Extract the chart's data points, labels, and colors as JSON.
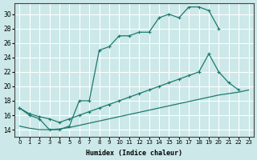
{
  "xlabel": "Humidex (Indice chaleur)",
  "xlim": [
    -0.5,
    23.5
  ],
  "ylim": [
    13,
    31.5
  ],
  "yticks": [
    14,
    16,
    18,
    20,
    22,
    24,
    26,
    28,
    30
  ],
  "xticks": [
    0,
    1,
    2,
    3,
    4,
    5,
    6,
    7,
    8,
    9,
    10,
    11,
    12,
    13,
    14,
    15,
    16,
    17,
    18,
    19,
    20,
    21,
    22,
    23
  ],
  "bg_color": "#cce8e8",
  "grid_color": "#ffffff",
  "line_color": "#1a7a6e",
  "curve1_x": [
    0,
    1,
    2,
    3,
    4,
    5,
    6,
    7,
    8,
    9,
    10,
    11,
    12,
    13,
    14,
    15,
    16,
    17,
    18,
    19,
    20
  ],
  "curve1_y": [
    17,
    16,
    15.5,
    14,
    14,
    14.5,
    18,
    18,
    25,
    25.5,
    27,
    27,
    27.5,
    27.5,
    29.5,
    30,
    29.5,
    31,
    31,
    30.5,
    28
  ],
  "curve2_x": [
    0,
    1,
    2,
    3,
    4,
    5,
    6,
    7,
    8,
    9,
    10,
    11,
    12,
    13,
    14,
    15,
    16,
    17,
    18,
    19,
    20,
    21,
    22
  ],
  "curve2_y": [
    17,
    16.2,
    15.8,
    15.5,
    15.0,
    15.5,
    16.0,
    16.5,
    17.0,
    17.5,
    18.0,
    18.5,
    19.0,
    19.5,
    20.0,
    20.5,
    21.0,
    21.5,
    22.0,
    24.5,
    22.0,
    20.5,
    19.5
  ],
  "curve3_x": [
    0,
    1,
    2,
    3,
    4,
    5,
    6,
    7,
    8,
    9,
    10,
    11,
    12,
    13,
    14,
    15,
    16,
    17,
    18,
    19,
    20,
    21,
    22,
    23
  ],
  "curve3_y": [
    14.5,
    14.2,
    14.0,
    14.0,
    14.1,
    14.3,
    14.6,
    14.9,
    15.2,
    15.5,
    15.8,
    16.1,
    16.4,
    16.7,
    17.0,
    17.3,
    17.6,
    17.9,
    18.2,
    18.5,
    18.8,
    19.0,
    19.2,
    19.5
  ]
}
